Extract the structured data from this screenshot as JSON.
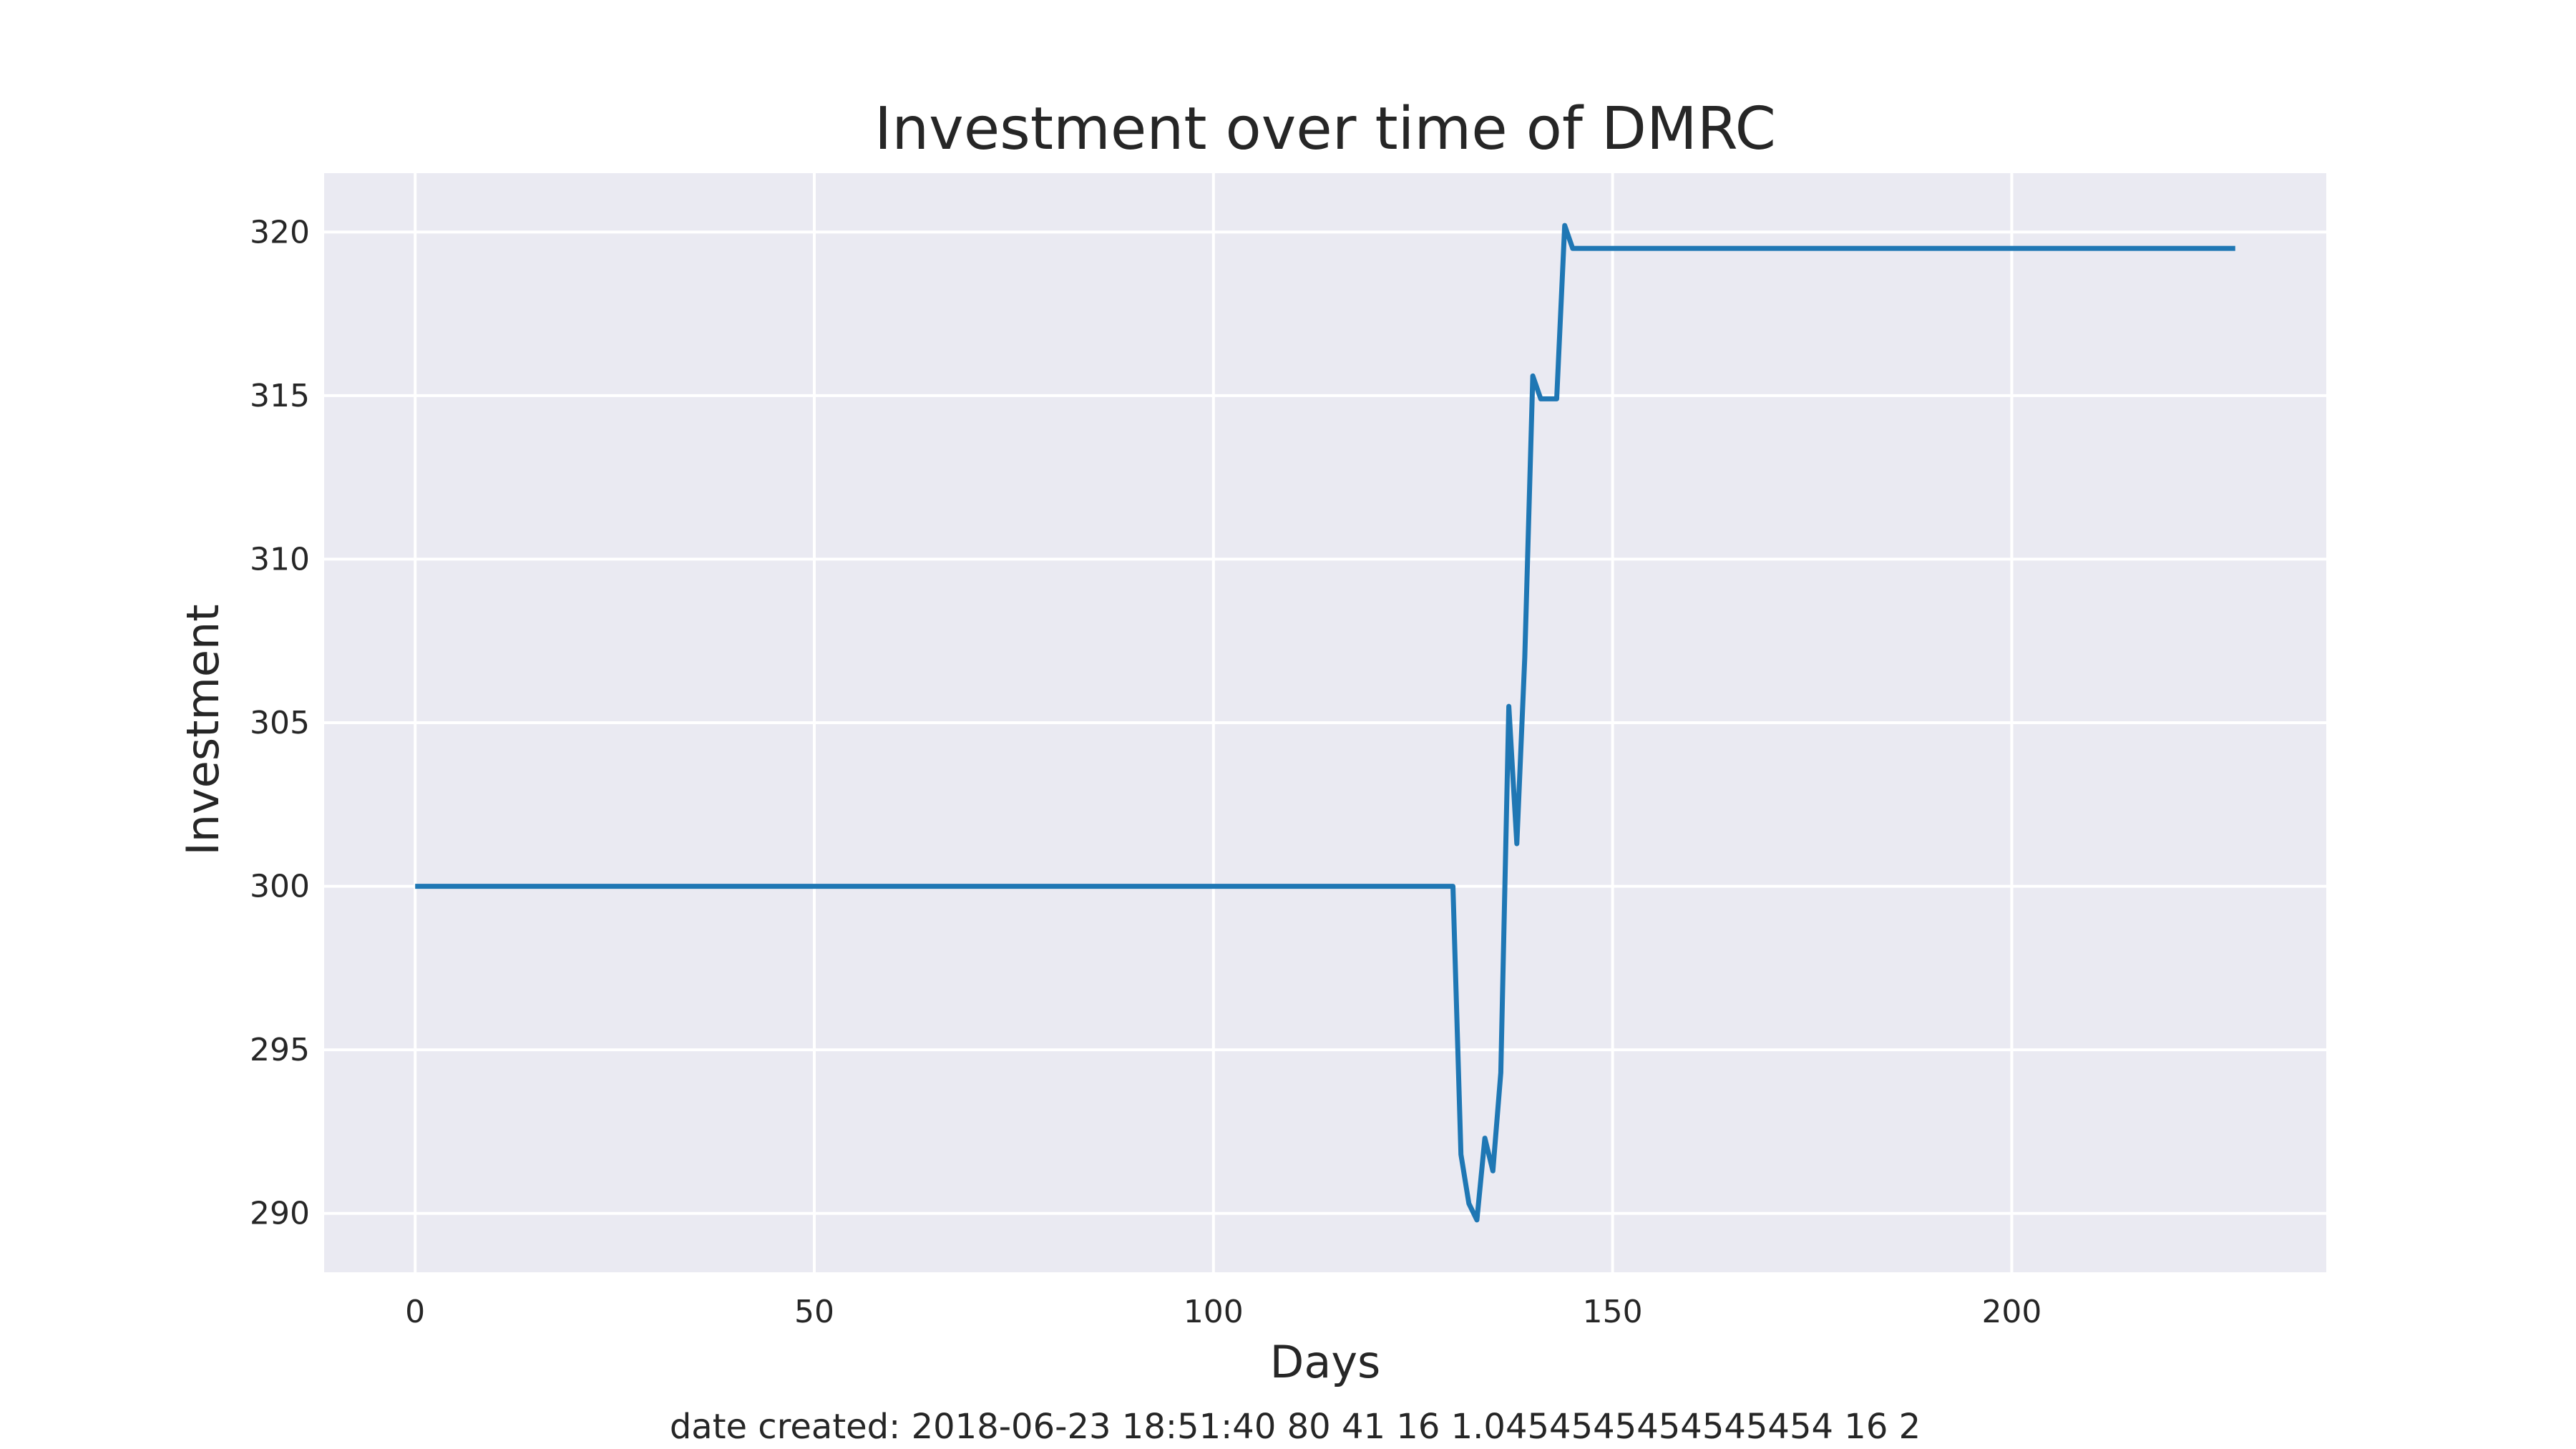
{
  "chart_data": {
    "type": "line",
    "title": "Investment over time of DMRC",
    "xlabel": "Days",
    "ylabel": "Investment",
    "footnote": "date created: 2018-06-23 18:51:40 80 41 16 1.0454545454545454 16 2",
    "xlim": [
      -11.4,
      239.4
    ],
    "ylim": [
      288.2,
      321.8
    ],
    "xticks": [
      0,
      50,
      100,
      150,
      200
    ],
    "yticks": [
      290,
      295,
      300,
      305,
      310,
      315,
      320
    ],
    "grid": true,
    "legend": false,
    "series": [
      {
        "color": "#1f77b4",
        "x": [
          0,
          130,
          131,
          132,
          133,
          134,
          135,
          136,
          137,
          138,
          139,
          140,
          141,
          142,
          143,
          144,
          145,
          150,
          200,
          228
        ],
        "y": [
          300,
          300,
          291.8,
          290.3,
          289.8,
          292.3,
          291.3,
          294.3,
          305.5,
          301.3,
          307.0,
          315.6,
          314.9,
          314.9,
          314.9,
          320.2,
          319.5,
          319.5,
          319.5,
          319.5
        ]
      }
    ]
  }
}
